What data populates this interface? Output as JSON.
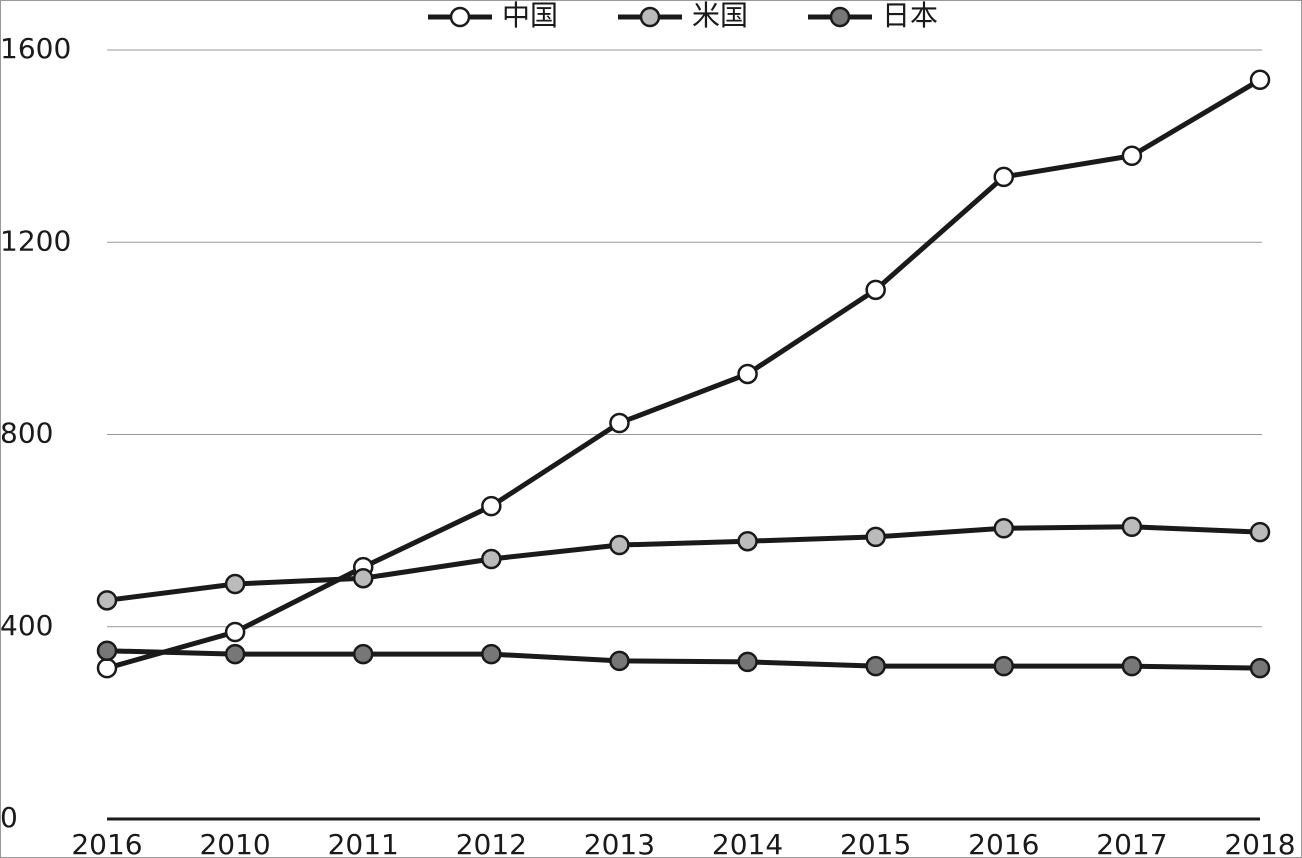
{
  "chart_data": {
    "type": "line",
    "categories": [
      "2016",
      "2010",
      "2011",
      "2012",
      "2013",
      "2014",
      "2015",
      "2016",
      "2017",
      "2018"
    ],
    "series": [
      {
        "name": "中国",
        "color": "#ffffff",
        "values": [
          314,
          389,
          524,
          651,
          824,
          926,
          1101,
          1336,
          1380,
          1538
        ]
      },
      {
        "name": "米国",
        "color": "#bbbbbb",
        "values": [
          455,
          489,
          501,
          541,
          570,
          578,
          587,
          605,
          608,
          597
        ]
      },
      {
        "name": "日本",
        "color": "#777777",
        "values": [
          350,
          343,
          343,
          343,
          329,
          327,
          318,
          318,
          318,
          314
        ]
      }
    ],
    "ylim": [
      0,
      1600
    ],
    "yticks": [
      0,
      400,
      800,
      1200,
      1600
    ],
    "grid": true,
    "legend": "top"
  }
}
